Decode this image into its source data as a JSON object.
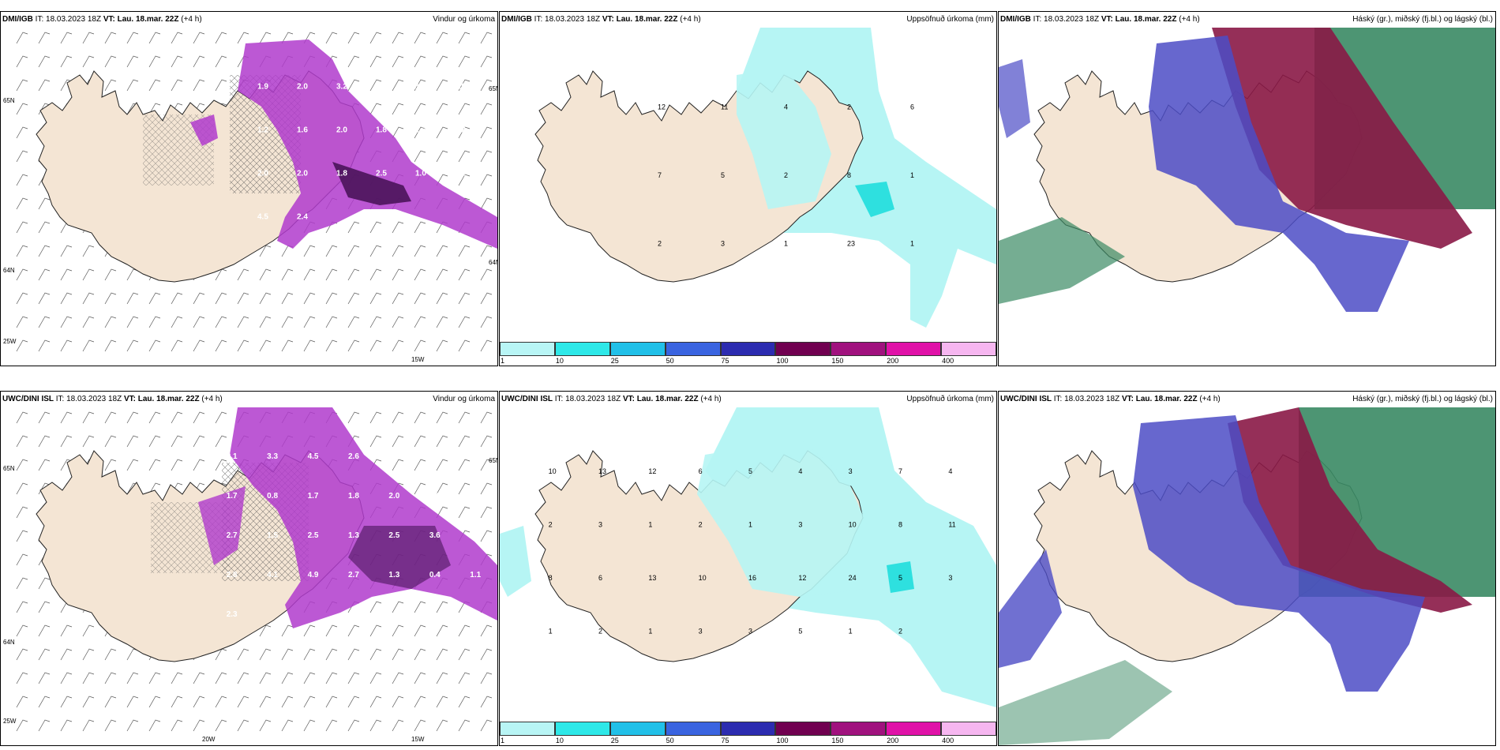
{
  "panels": {
    "p1": {
      "model": "DMI/IGB",
      "it": "IT: 18.03.2023 18Z",
      "vt_label": "VT: Lau. 18.mar. 22Z",
      "lead": "(+4 h)",
      "right": "Vindur og úrkoma",
      "values": [
        "1.9",
        "2.0",
        "3.2",
        "1.0",
        "1.9",
        "1.0",
        "1.2",
        "1.6",
        "2.0",
        "1.8",
        "1.7",
        "1.2",
        "2.0",
        "2.0",
        "1.8",
        "2.5",
        "1.0",
        "4.1",
        "4.5",
        "2.4"
      ],
      "axes": [
        "65N",
        "64N",
        "25W",
        "15W",
        "65N",
        "64N"
      ]
    },
    "p2": {
      "model": "DMI/IGB",
      "it": "IT: 18.03.2023 18Z",
      "vt_label": "VT: Lau. 18.mar. 22Z",
      "lead": "(+4 h)",
      "right": "Uppsöfnuð úrkoma (mm)",
      "values": [
        "12",
        "11",
        "4",
        "2",
        "6",
        "7",
        "5",
        "2",
        "8",
        "1",
        "2",
        "3",
        "1",
        "23",
        "1"
      ]
    },
    "p3": {
      "model": "DMI/IGB",
      "it": "IT: 18.03.2023 18Z",
      "vt_label": "VT: Lau. 18.mar. 22Z",
      "lead": "(+4 h)",
      "right": "Háský (gr.), miðský (fj.bl.) og lágský (bl.)"
    },
    "p4": {
      "model": "UWC/DINI ISL",
      "it": "IT: 18.03.2023 18Z",
      "vt_label": "VT: Lau. 18.mar. 22Z",
      "lead": "(+4 h)",
      "right": "Vindur og úrkoma",
      "values": [
        "2.1",
        "3.3",
        "4.5",
        "2.6",
        "3.1",
        "2.2",
        "2.7",
        "1.7",
        "0.8",
        "1.7",
        "1.8",
        "2.0",
        "3.1",
        "3.7",
        "2.7",
        "1.5",
        "2.5",
        "1.3",
        "2.5",
        "3.6",
        "1.9",
        "2.8",
        "4.1",
        "4.9",
        "2.7",
        "1.3",
        "0.4",
        "1.1",
        "2.3"
      ],
      "axes": [
        "65N",
        "64N",
        "25W",
        "20W",
        "15W",
        "65N"
      ]
    },
    "p5": {
      "model": "UWC/DINI ISL",
      "it": "IT: 18.03.2023 18Z",
      "vt_label": "VT: Lau. 18.mar. 22Z",
      "lead": "(+4 h)",
      "right": "Uppsöfnuð úrkoma (mm)",
      "values": [
        "10",
        "13",
        "12",
        "6",
        "5",
        "4",
        "3",
        "7",
        "4",
        "2",
        "3",
        "1",
        "2",
        "1",
        "3",
        "10",
        "8",
        "11",
        "8",
        "6",
        "13",
        "10",
        "16",
        "12",
        "24",
        "5",
        "3",
        "1",
        "2",
        "1",
        "3",
        "3",
        "5",
        "1",
        "2"
      ]
    },
    "p6": {
      "model": "UWC/DINI ISL",
      "it": "IT: 18.03.2023 18Z",
      "vt_label": "VT: Lau. 18.mar. 22Z",
      "lead": "(+4 h)",
      "right": "Háský (gr.), miðský (fj.bl.) og lágský (bl.)"
    }
  },
  "legend": {
    "labels": [
      "1",
      "10",
      "25",
      "50",
      "75",
      "100",
      "150",
      "200",
      "400"
    ],
    "colors": [
      "#b8f5f5",
      "#2ee8e8",
      "#21c0e8",
      "#3a64e0",
      "#2c2cb0",
      "#700050",
      "#a0127e",
      "#e012a8",
      "#f6b6f0"
    ]
  },
  "colors": {
    "land": "#f4e5d4",
    "precip_light": "#b6f5f4",
    "precip_mid": "#2ee0df",
    "wind_purple": "#b03bcc",
    "wind_dark": "#4a145a",
    "cloud_high": "#3a8a64",
    "cloud_mid": "#8a1846",
    "cloud_low": "#4c4cc6"
  }
}
